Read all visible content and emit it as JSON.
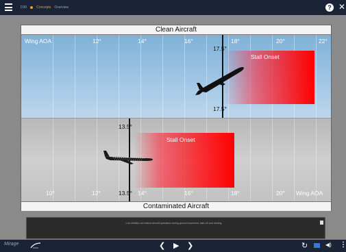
{
  "header": {
    "crumbs": [
      "D30",
      "Concepts",
      "Overview"
    ]
  },
  "panel": {
    "top_title": "Clean Aircraft",
    "bottom_title": "Contaminated Aircraft",
    "clean": {
      "axis_name": "Wing AOA",
      "ticks": [
        "12°",
        "14°",
        "16°",
        "18°",
        "20°",
        "22°"
      ],
      "stall_label": "Stall Onset",
      "aoa_top": "17.5°",
      "aoa_bottom": "17.5°"
    },
    "contaminated": {
      "axis_name": "Wing AOA",
      "ticks": [
        "10°",
        "12°",
        "14°",
        "16°",
        "18°",
        "20°"
      ],
      "stall_label": "Stall Onset",
      "aoa_top": "13.5°",
      "aoa_bottom": "13.5°"
    }
  },
  "narration": {
    "text": "Low visibility can restrict aircraft operations during ground movement, take-off, and landing."
  },
  "footer": {
    "logo": "Mirage"
  },
  "colors": {
    "bar": "#1a2436",
    "stall": "#ff0000"
  },
  "icons": [
    "menu-icon",
    "help-icon",
    "close-icon",
    "prev-icon",
    "play-icon",
    "next-icon",
    "reload-icon",
    "captions-icon",
    "volume-icon",
    "more-icon"
  ]
}
